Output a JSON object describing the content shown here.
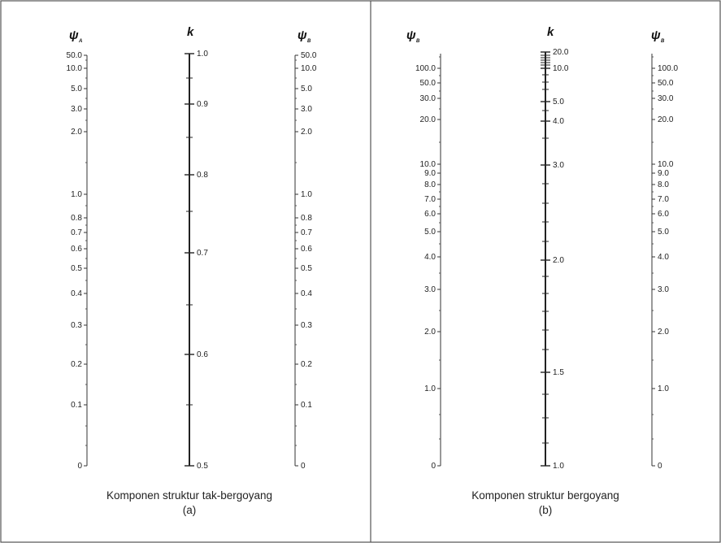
{
  "panels": [
    {
      "caption_line1": "Komponen struktur tak-bergoyang",
      "caption_line2": "(a)",
      "headers": {
        "left_symbol": "ψ",
        "left_sub": "A",
        "mid_symbol": "k",
        "right_symbol": "ψ",
        "right_sub": "B"
      },
      "left_labels": [
        "50.0",
        "10.0",
        "5.0",
        "3.0",
        "2.0",
        "1.0",
        "0.8",
        "0.7",
        "0.6",
        "0.5",
        "0.4",
        "0.3",
        "0.2",
        "0.1",
        "0"
      ],
      "k_labels": [
        "1.0",
        "0.9",
        "0.8",
        "0.7",
        "0.6",
        "0.5"
      ],
      "right_labels": [
        "50.0",
        "10.0",
        "5.0",
        "3.0",
        "2.0",
        "1.0",
        "0.8",
        "0.7",
        "0.6",
        "0.5",
        "0.4",
        "0.3",
        "0.2",
        "0.1",
        "0"
      ]
    },
    {
      "caption_line1": "Komponen struktur bergoyang",
      "caption_line2": "(b)",
      "headers": {
        "left_symbol": "ψ",
        "left_sub": "B",
        "mid_symbol": "k",
        "right_symbol": "ψ",
        "right_sub": "B"
      },
      "left_labels": [
        "100.0",
        "50.0",
        "30.0",
        "20.0",
        "10.0",
        "9.0",
        "8.0",
        "7.0",
        "6.0",
        "5.0",
        "4.0",
        "3.0",
        "2.0",
        "1.0",
        "0"
      ],
      "k_labels": [
        "20.0",
        "10.0",
        "5.0",
        "4.0",
        "3.0",
        "2.0",
        "1.5",
        "1.0"
      ],
      "right_labels": [
        "100.0",
        "50.0",
        "30.0",
        "20.0",
        "10.0",
        "9.0",
        "8.0",
        "7.0",
        "6.0",
        "5.0",
        "4.0",
        "3.0",
        "2.0",
        "1.0",
        "0"
      ]
    }
  ]
}
